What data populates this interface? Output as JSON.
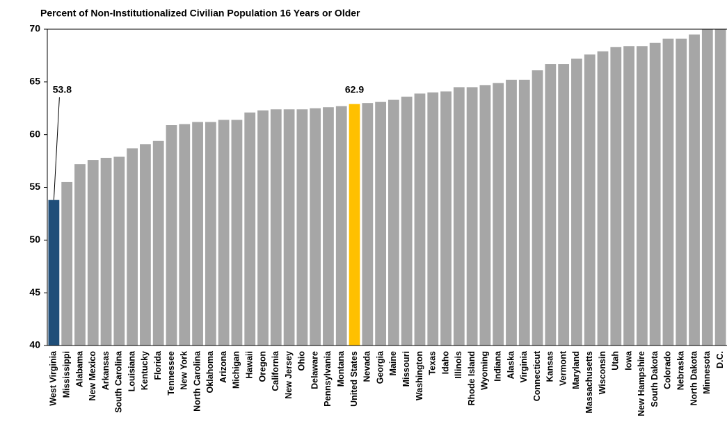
{
  "chart_data": {
    "type": "bar",
    "title": "Percent of Non-Institutionalized Civilian Population 16 Years or Older",
    "categories": [
      "West Virginia",
      "Mississippi",
      "Alabama",
      "New Mexico",
      "Arkansas",
      "South Carolina",
      "Louisiana",
      "Kentucky",
      "Florida",
      "Tennessee",
      "New York",
      "North Carolina",
      "Oklahoma",
      "Arizona",
      "Michigan",
      "Hawaii",
      "Oregon",
      "California",
      "New Jersey",
      "Ohio",
      "Delaware",
      "Pennsylvania",
      "Montana",
      "United States",
      "Nevada",
      "Georgia",
      "Maine",
      "Missouri",
      "Washington",
      "Texas",
      "Idaho",
      "Illinois",
      "Rhode Island",
      "Wyoming",
      "Indiana",
      "Alaska",
      "Virginia",
      "Connecticut",
      "Kansas",
      "Vermont",
      "Maryland",
      "Massachusetts",
      "Wisconsin",
      "Utah",
      "Iowa",
      "New Hampshire",
      "South Dakota",
      "Colorado",
      "Nebraska",
      "North Dakota",
      "Minnesota",
      "D.C."
    ],
    "values": [
      53.8,
      55.5,
      57.2,
      57.6,
      57.8,
      57.9,
      58.7,
      59.1,
      59.4,
      60.9,
      61.0,
      61.2,
      61.2,
      61.4,
      61.4,
      62.1,
      62.3,
      62.4,
      62.4,
      62.4,
      62.5,
      62.6,
      62.7,
      62.9,
      63.0,
      63.1,
      63.3,
      63.6,
      63.9,
      64.0,
      64.1,
      64.5,
      64.5,
      64.7,
      64.9,
      65.2,
      65.2,
      66.1,
      66.7,
      66.7,
      67.2,
      67.6,
      67.9,
      68.3,
      68.4,
      68.4,
      68.7,
      69.1,
      69.1,
      69.5,
      70.0,
      70.0
    ],
    "value_labels": [
      "53.8",
      null,
      null,
      null,
      null,
      null,
      null,
      null,
      null,
      null,
      null,
      null,
      null,
      null,
      null,
      null,
      null,
      null,
      null,
      null,
      null,
      null,
      null,
      "62.9",
      null,
      null,
      null,
      null,
      null,
      null,
      null,
      null,
      null,
      null,
      null,
      null,
      null,
      null,
      null,
      null,
      null,
      null,
      null,
      null,
      null,
      null,
      null,
      null,
      null,
      null,
      null,
      null
    ],
    "colors": [
      "#1f4e79",
      "#a6a6a6",
      "#a6a6a6",
      "#a6a6a6",
      "#a6a6a6",
      "#a6a6a6",
      "#a6a6a6",
      "#a6a6a6",
      "#a6a6a6",
      "#a6a6a6",
      "#a6a6a6",
      "#a6a6a6",
      "#a6a6a6",
      "#a6a6a6",
      "#a6a6a6",
      "#a6a6a6",
      "#a6a6a6",
      "#a6a6a6",
      "#a6a6a6",
      "#a6a6a6",
      "#a6a6a6",
      "#a6a6a6",
      "#a6a6a6",
      "#ffc000",
      "#a6a6a6",
      "#a6a6a6",
      "#a6a6a6",
      "#a6a6a6",
      "#a6a6a6",
      "#a6a6a6",
      "#a6a6a6",
      "#a6a6a6",
      "#a6a6a6",
      "#a6a6a6",
      "#a6a6a6",
      "#a6a6a6",
      "#a6a6a6",
      "#a6a6a6",
      "#a6a6a6",
      "#a6a6a6",
      "#a6a6a6",
      "#a6a6a6",
      "#a6a6a6",
      "#a6a6a6",
      "#a6a6a6",
      "#a6a6a6",
      "#a6a6a6",
      "#a6a6a6",
      "#a6a6a6",
      "#a6a6a6",
      "#a6a6a6",
      "#a6a6a6"
    ],
    "ylim": [
      40,
      70
    ],
    "yticks": [
      40,
      45,
      50,
      55,
      60,
      65,
      70
    ],
    "grid": false
  }
}
